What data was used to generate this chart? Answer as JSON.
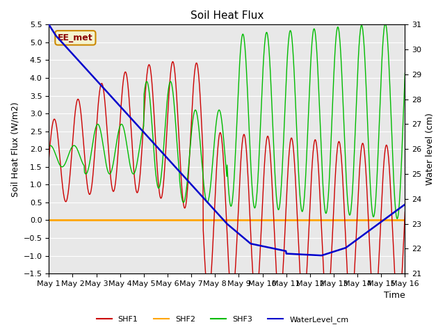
{
  "title": "Soil Heat Flux",
  "ylabel_left": "Soil Heat Flux (W/m2)",
  "ylabel_right": "Water level (cm)",
  "xlabel": "Time",
  "ylim_left": [
    -1.5,
    5.5
  ],
  "ylim_right": [
    21.0,
    31.0
  ],
  "background_color": "#e8e8e8",
  "legend_label": "EE_met",
  "legend_label_color": "#8b0000",
  "legend_box_facecolor": "#f5f5d0",
  "legend_box_edgecolor": "#cc8800",
  "shf1_color": "#cc0000",
  "shf2_color": "#ffa500",
  "shf3_color": "#00bb00",
  "wl_color": "#0000cc",
  "xtick_labels": [
    "May 1",
    "May 2",
    "May 3",
    "May 4",
    "May 5",
    "May 6",
    "May 7",
    "May 8",
    "May 9",
    "May 10",
    "May 11",
    "May 12",
    "May 13",
    "May 14",
    "May 15",
    "May 16"
  ],
  "ytick_left": [
    -1.5,
    -1.0,
    -0.5,
    0.0,
    0.5,
    1.0,
    1.5,
    2.0,
    2.5,
    3.0,
    3.5,
    4.0,
    4.5,
    5.0,
    5.5
  ],
  "ytick_right": [
    21.0,
    22.0,
    23.0,
    24.0,
    25.0,
    26.0,
    27.0,
    28.0,
    29.0,
    30.0,
    31.0
  ],
  "grid_color": "white",
  "grid_linewidth": 0.8
}
